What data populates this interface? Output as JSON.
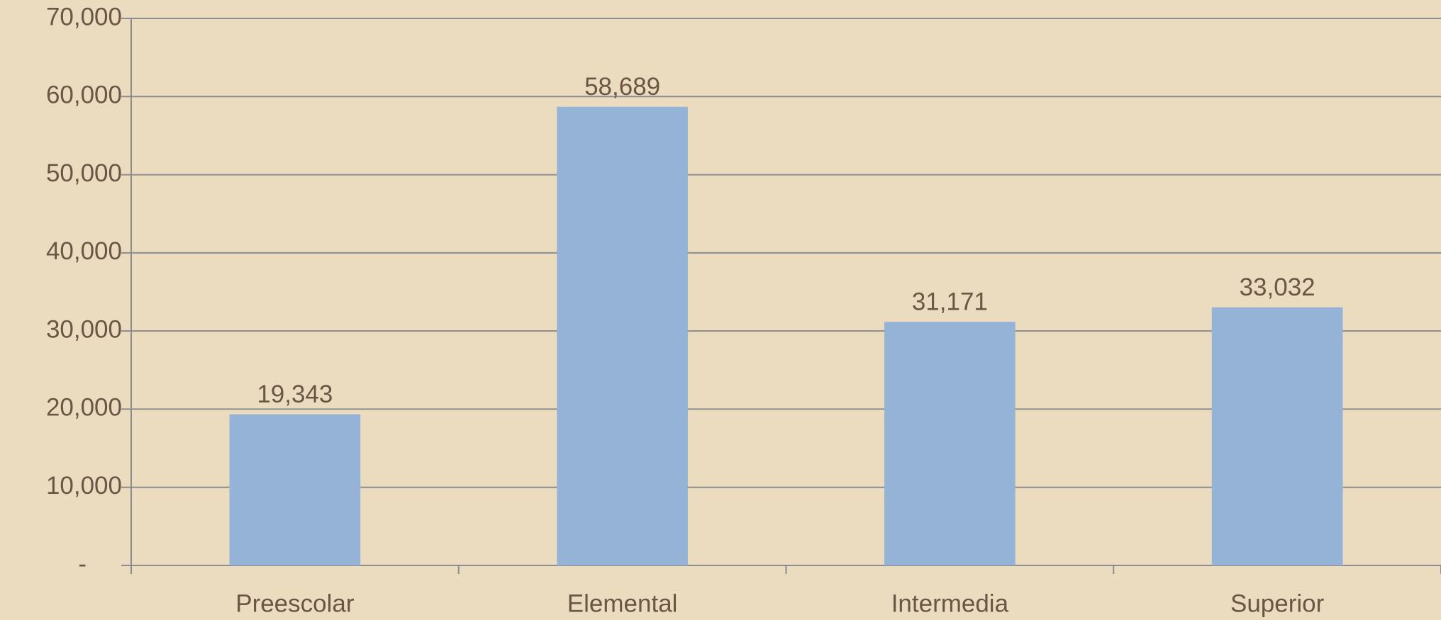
{
  "chart_data": {
    "type": "bar",
    "categories": [
      "Preescolar",
      "Elemental",
      "Intermedia",
      "Superior"
    ],
    "values": [
      19343,
      58689,
      31171,
      33032
    ],
    "value_labels": [
      "19,343",
      "58,689",
      "31,171",
      "33,032"
    ],
    "color": "#95b3d7",
    "ylim": [
      0,
      70000
    ],
    "yticks": [
      {
        "value": 0,
        "label": "-"
      },
      {
        "value": 10000,
        "label": "10,000"
      },
      {
        "value": 20000,
        "label": "20,000"
      },
      {
        "value": 30000,
        "label": "30,000"
      },
      {
        "value": 40000,
        "label": "40,000"
      },
      {
        "value": 50000,
        "label": "50,000"
      },
      {
        "value": 60000,
        "label": "60,000"
      },
      {
        "value": 70000,
        "label": "70,000"
      }
    ],
    "grid": true
  }
}
